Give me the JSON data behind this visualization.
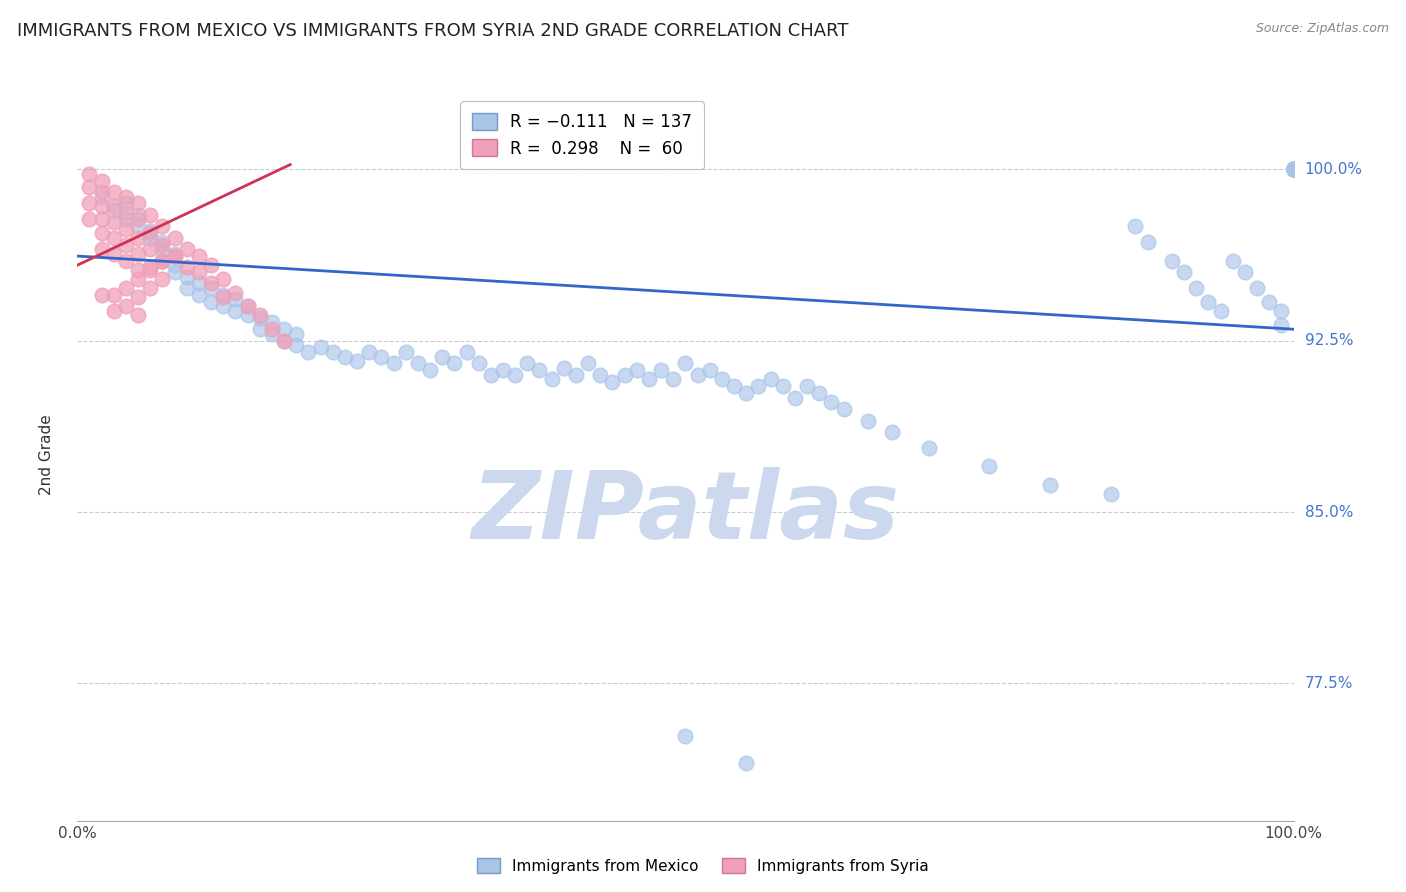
{
  "title": "IMMIGRANTS FROM MEXICO VS IMMIGRANTS FROM SYRIA 2ND GRADE CORRELATION CHART",
  "source": "Source: ZipAtlas.com",
  "ylabel": "2nd Grade",
  "ytick_labels": [
    "100.0%",
    "92.5%",
    "85.0%",
    "77.5%"
  ],
  "ytick_values": [
    1.0,
    0.925,
    0.85,
    0.775
  ],
  "xlim": [
    0.0,
    1.0
  ],
  "ylim": [
    0.715,
    1.035
  ],
  "blue_scatter_color": "#aac4e8",
  "pink_scatter_color": "#f0a0b8",
  "blue_line_color": "#3366cc",
  "pink_line_color": "#cc3355",
  "watermark_color": "#ccd8ee",
  "background_color": "#ffffff",
  "grid_color": "#cccccc",
  "title_fontsize": 13,
  "axis_label_fontsize": 11,
  "tick_label_fontsize": 11,
  "blue_scatter_x": [
    0.02,
    0.03,
    0.04,
    0.04,
    0.05,
    0.05,
    0.06,
    0.06,
    0.07,
    0.07,
    0.07,
    0.08,
    0.08,
    0.08,
    0.09,
    0.09,
    0.1,
    0.1,
    0.11,
    0.11,
    0.12,
    0.12,
    0.13,
    0.13,
    0.14,
    0.14,
    0.15,
    0.15,
    0.16,
    0.16,
    0.17,
    0.17,
    0.18,
    0.18,
    0.19,
    0.2,
    0.21,
    0.22,
    0.23,
    0.24,
    0.25,
    0.26,
    0.27,
    0.28,
    0.29,
    0.3,
    0.31,
    0.32,
    0.33,
    0.34,
    0.35,
    0.36,
    0.37,
    0.38,
    0.39,
    0.4,
    0.41,
    0.42,
    0.43,
    0.44,
    0.45,
    0.46,
    0.47,
    0.48,
    0.49,
    0.5,
    0.51,
    0.52,
    0.53,
    0.54,
    0.55,
    0.56,
    0.57,
    0.58,
    0.59,
    0.6,
    0.61,
    0.62,
    0.63,
    0.65,
    0.67,
    0.7,
    0.75,
    0.8,
    0.85,
    0.87,
    0.88,
    0.9,
    0.91,
    0.92,
    0.93,
    0.94,
    0.95,
    0.96,
    0.97,
    0.98,
    0.99,
    1.0,
    1.0,
    1.0,
    1.0,
    1.0,
    1.0,
    1.0,
    1.0,
    1.0,
    1.0,
    1.0,
    1.0,
    1.0,
    1.0,
    1.0,
    1.0,
    0.5,
    0.55,
    0.99
  ],
  "blue_scatter_y": [
    0.988,
    0.982,
    0.978,
    0.985,
    0.975,
    0.98,
    0.97,
    0.973,
    0.968,
    0.965,
    0.96,
    0.958,
    0.963,
    0.955,
    0.953,
    0.948,
    0.95,
    0.945,
    0.948,
    0.942,
    0.94,
    0.945,
    0.938,
    0.943,
    0.936,
    0.94,
    0.935,
    0.93,
    0.933,
    0.928,
    0.93,
    0.925,
    0.928,
    0.923,
    0.92,
    0.922,
    0.92,
    0.918,
    0.916,
    0.92,
    0.918,
    0.915,
    0.92,
    0.915,
    0.912,
    0.918,
    0.915,
    0.92,
    0.915,
    0.91,
    0.912,
    0.91,
    0.915,
    0.912,
    0.908,
    0.913,
    0.91,
    0.915,
    0.91,
    0.907,
    0.91,
    0.912,
    0.908,
    0.912,
    0.908,
    0.915,
    0.91,
    0.912,
    0.908,
    0.905,
    0.902,
    0.905,
    0.908,
    0.905,
    0.9,
    0.905,
    0.902,
    0.898,
    0.895,
    0.89,
    0.885,
    0.878,
    0.87,
    0.862,
    0.858,
    0.975,
    0.968,
    0.96,
    0.955,
    0.948,
    0.942,
    0.938,
    0.96,
    0.955,
    0.948,
    0.942,
    0.938,
    1.0,
    1.0,
    1.0,
    1.0,
    1.0,
    1.0,
    1.0,
    1.0,
    1.0,
    1.0,
    1.0,
    1.0,
    1.0,
    1.0,
    1.0,
    1.0,
    0.752,
    0.74,
    0.932
  ],
  "pink_scatter_x": [
    0.01,
    0.01,
    0.01,
    0.01,
    0.02,
    0.02,
    0.02,
    0.02,
    0.02,
    0.02,
    0.03,
    0.03,
    0.03,
    0.03,
    0.03,
    0.04,
    0.04,
    0.04,
    0.04,
    0.04,
    0.05,
    0.05,
    0.05,
    0.05,
    0.05,
    0.06,
    0.06,
    0.06,
    0.06,
    0.07,
    0.07,
    0.07,
    0.08,
    0.08,
    0.09,
    0.09,
    0.1,
    0.1,
    0.11,
    0.11,
    0.12,
    0.12,
    0.13,
    0.14,
    0.15,
    0.16,
    0.17,
    0.02,
    0.03,
    0.03,
    0.04,
    0.04,
    0.05,
    0.05,
    0.05,
    0.06,
    0.06,
    0.07,
    0.07,
    0.08
  ],
  "pink_scatter_y": [
    0.998,
    0.992,
    0.985,
    0.978,
    0.995,
    0.99,
    0.984,
    0.978,
    0.972,
    0.965,
    0.99,
    0.984,
    0.977,
    0.97,
    0.963,
    0.988,
    0.981,
    0.974,
    0.967,
    0.96,
    0.985,
    0.978,
    0.97,
    0.963,
    0.956,
    0.98,
    0.972,
    0.965,
    0.957,
    0.975,
    0.967,
    0.96,
    0.97,
    0.962,
    0.965,
    0.957,
    0.962,
    0.955,
    0.958,
    0.95,
    0.952,
    0.944,
    0.946,
    0.94,
    0.936,
    0.93,
    0.925,
    0.945,
    0.945,
    0.938,
    0.948,
    0.94,
    0.952,
    0.944,
    0.936,
    0.956,
    0.948,
    0.96,
    0.952,
    0.962
  ],
  "blue_line_x": [
    0.0,
    1.0
  ],
  "blue_line_y": [
    0.962,
    0.93
  ],
  "pink_line_x": [
    0.0,
    0.175
  ],
  "pink_line_y": [
    0.958,
    1.002
  ]
}
